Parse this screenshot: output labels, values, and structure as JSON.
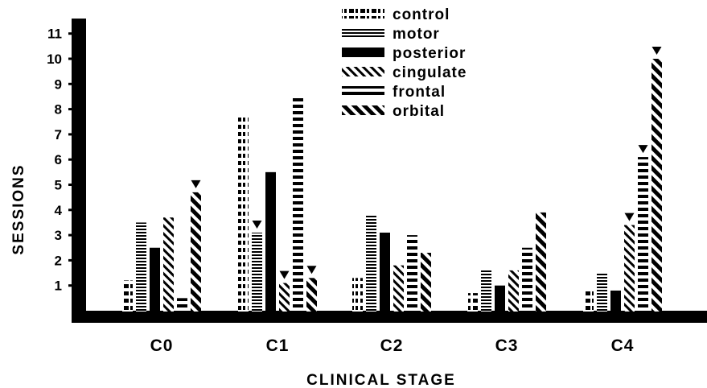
{
  "chart_data": {
    "type": "bar",
    "xlabel": "CLINICAL   STAGE",
    "ylabel": "SESSIONS",
    "ylim": [
      0,
      11.5
    ],
    "yticks": [
      1,
      2,
      3,
      4,
      5,
      6,
      7,
      8,
      9,
      10,
      11
    ],
    "categories": [
      "C0",
      "C1",
      "C2",
      "C3",
      "C4"
    ],
    "legend_position": "top-center",
    "series": [
      {
        "name": "control",
        "pattern": "dash-dot",
        "values": [
          1.2,
          7.7,
          1.3,
          0.7,
          0.8
        ]
      },
      {
        "name": "motor",
        "pattern": "fine-stripes",
        "values": [
          3.5,
          3.1,
          3.8,
          1.6,
          1.5
        ]
      },
      {
        "name": "posterior",
        "pattern": "solid",
        "values": [
          2.5,
          5.5,
          3.1,
          1.0,
          0.8
        ]
      },
      {
        "name": "cingulate",
        "pattern": "diagonal-thin",
        "values": [
          3.7,
          1.1,
          1.8,
          1.6,
          3.4
        ]
      },
      {
        "name": "frontal",
        "pattern": "dashes",
        "values": [
          0.5,
          8.5,
          3.0,
          2.5,
          6.1
        ]
      },
      {
        "name": "orbital",
        "pattern": "diagonal-bold",
        "values": [
          4.7,
          1.3,
          2.3,
          3.9,
          10.0
        ]
      }
    ],
    "markers": [
      {
        "category": "C0",
        "series": "orbital"
      },
      {
        "category": "C1",
        "series": "motor"
      },
      {
        "category": "C1",
        "series": "cingulate"
      },
      {
        "category": "C1",
        "series": "orbital"
      },
      {
        "category": "C4",
        "series": "cingulate"
      },
      {
        "category": "C4",
        "series": "frontal"
      },
      {
        "category": "C4",
        "series": "orbital"
      }
    ]
  }
}
